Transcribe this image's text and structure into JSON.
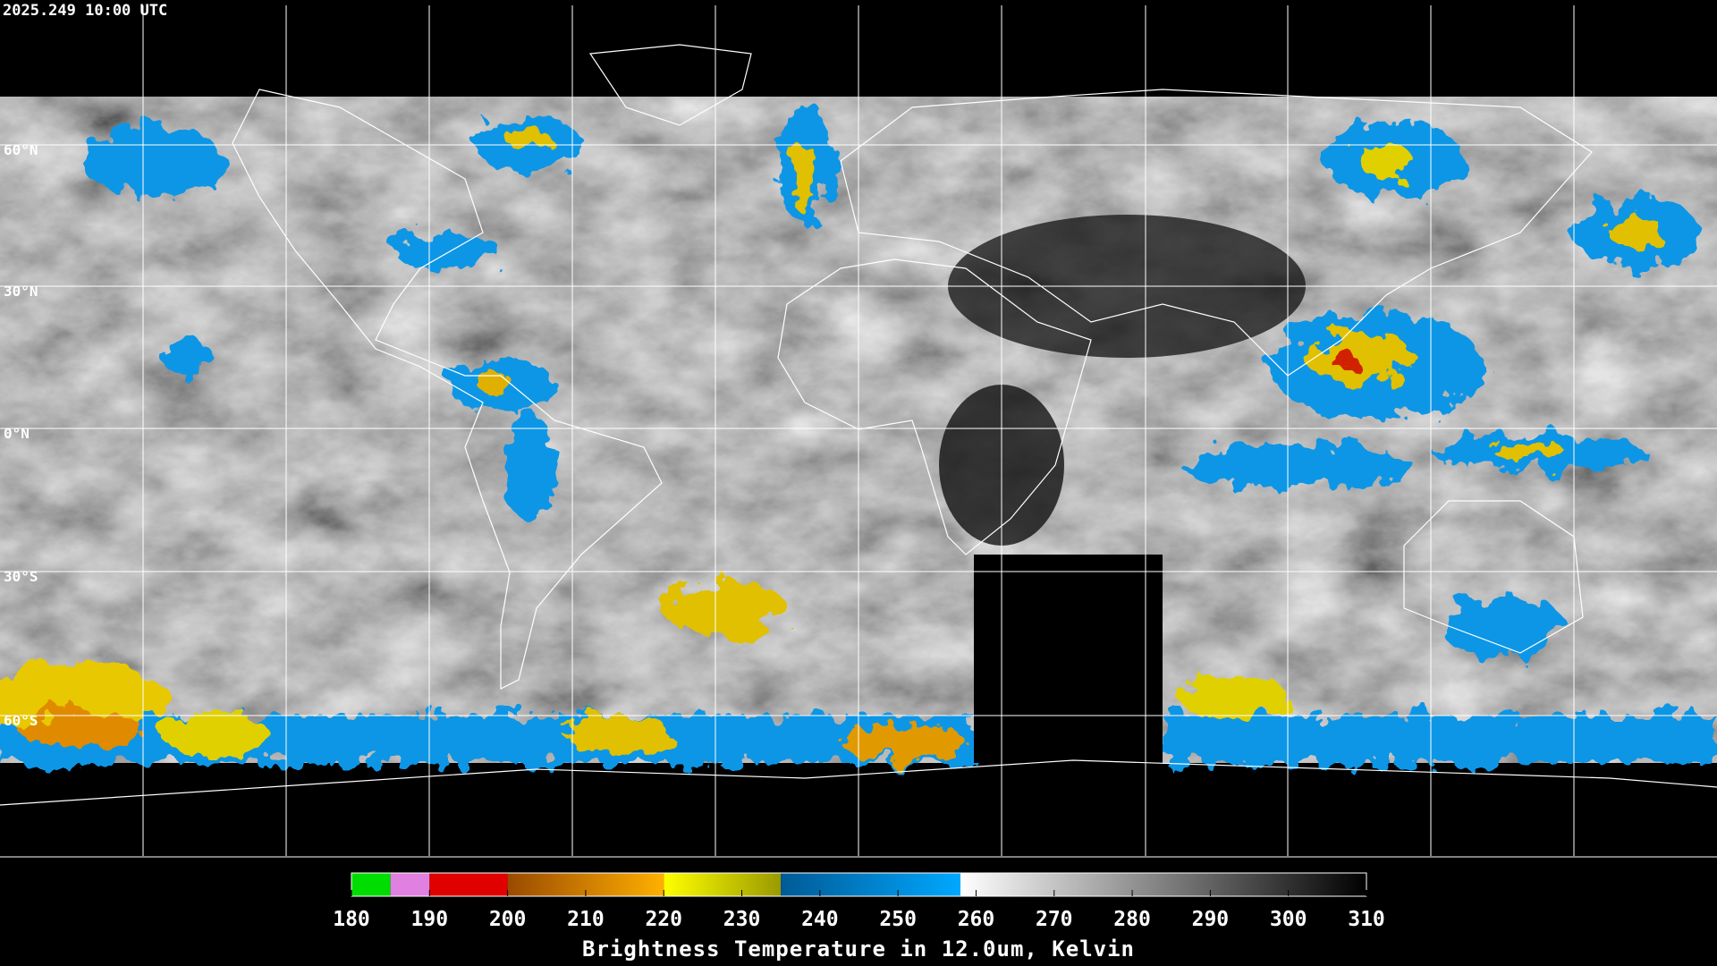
{
  "timestamp": "2025.249 10:00 UTC",
  "latitude_labels": [
    "60°N",
    "30°N",
    "0°N",
    "30°S",
    "60°S"
  ],
  "colorbar": {
    "title": "Brightness Temperature in 12.0um, Kelvin",
    "range": [
      180,
      310
    ],
    "ticks": [
      180,
      190,
      200,
      210,
      220,
      230,
      240,
      250,
      260,
      270,
      280,
      290,
      300,
      310
    ],
    "segments": [
      {
        "from": 180,
        "to": 185,
        "colors": [
          "#00dd00",
          "#00dd00"
        ]
      },
      {
        "from": 185,
        "to": 190,
        "colors": [
          "#e080e0",
          "#e080e0"
        ]
      },
      {
        "from": 190,
        "to": 200,
        "colors": [
          "#e00000",
          "#e00000"
        ]
      },
      {
        "from": 200,
        "to": 220,
        "colors": [
          "#9a4a00",
          "#ffb000"
        ]
      },
      {
        "from": 220,
        "to": 235,
        "colors": [
          "#ffff00",
          "#9a9a00"
        ]
      },
      {
        "from": 235,
        "to": 258,
        "colors": [
          "#005a96",
          "#00a8ff"
        ]
      },
      {
        "from": 258,
        "to": 310,
        "colors": [
          "#ffffff",
          "#000000"
        ]
      }
    ]
  }
}
